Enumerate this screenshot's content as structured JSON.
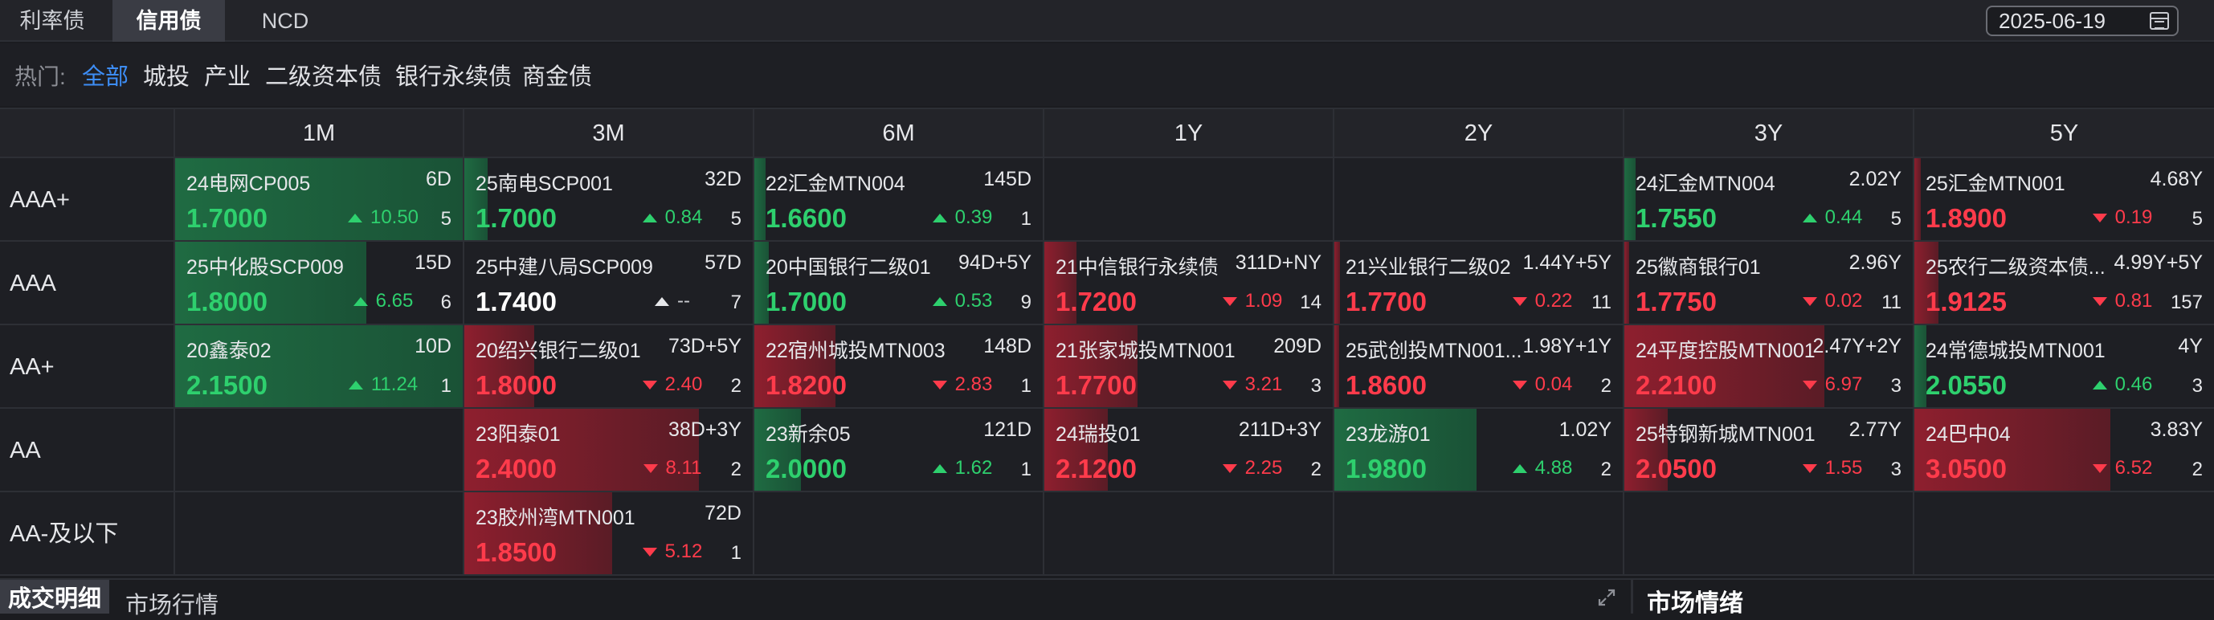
{
  "tabs": [
    "利率债",
    "信用债",
    "NCD"
  ],
  "active_tab": "信用债",
  "date": "2025-06-19",
  "hot": {
    "label": "热门:",
    "items": [
      "全部",
      "城投",
      "产业",
      "二级资本债",
      "银行永续债",
      "商金债"
    ],
    "active": "全部"
  },
  "columns": [
    "1M",
    "3M",
    "6M",
    "1Y",
    "2Y",
    "3Y",
    "5Y"
  ],
  "rows": [
    {
      "rating": "AAA+",
      "cells": [
        {
          "name": "24电网CP005",
          "term": "6D",
          "yield": "1.7000",
          "dir": "up",
          "change": "10.50",
          "count": "5",
          "level": 1.0
        },
        {
          "name": "25南电SCP001",
          "term": "32D",
          "yield": "1.7000",
          "dir": "up",
          "change": "0.84",
          "count": "5",
          "level": 0.08
        },
        {
          "name": "22汇金MTN004",
          "term": "145D",
          "yield": "1.6600",
          "dir": "up",
          "change": "0.39",
          "count": "1",
          "level": 0.04
        },
        null,
        null,
        {
          "name": "24汇金MTN004",
          "term": "2.02Y",
          "yield": "1.7550",
          "dir": "up",
          "change": "0.44",
          "count": "5",
          "level": 0.04
        },
        {
          "name": "25汇金MTN001",
          "term": "4.68Y",
          "yield": "1.8900",
          "dir": "down",
          "change": "0.19",
          "count": "5",
          "level": 0.02
        }
      ]
    },
    {
      "rating": "AAA",
      "cells": [
        {
          "name": "25中化股SCP009",
          "term": "15D",
          "yield": "1.8000",
          "dir": "up",
          "change": "6.65",
          "count": "6",
          "level": 0.66
        },
        {
          "name": "25中建八局SCP009",
          "term": "57D",
          "yield": "1.7400",
          "dir": "flat",
          "change": "--",
          "count": "7",
          "level": 0
        },
        {
          "name": "20中国银行二级01",
          "term": "94D+5Y",
          "yield": "1.7000",
          "dir": "up",
          "change": "0.53",
          "count": "9",
          "level": 0.05
        },
        {
          "name": "21中信银行永续债",
          "term": "311D+NY",
          "yield": "1.7200",
          "dir": "down",
          "change": "1.09",
          "count": "14",
          "level": 0.11
        },
        {
          "name": "21兴业银行二级02",
          "term": "1.44Y+5Y",
          "yield": "1.7700",
          "dir": "down",
          "change": "0.22",
          "count": "11",
          "level": 0.02
        },
        {
          "name": "25徽商银行01",
          "term": "2.96Y",
          "yield": "1.7750",
          "dir": "down",
          "change": "0.02",
          "count": "11",
          "level": 0.0
        },
        {
          "name": "25农行二级资本债...",
          "term": "4.99Y+5Y",
          "yield": "1.9125",
          "dir": "down",
          "change": "0.81",
          "count": "157",
          "level": 0.08
        }
      ]
    },
    {
      "rating": "AA+",
      "cells": [
        {
          "name": "20鑫泰02",
          "term": "10D",
          "yield": "2.1500",
          "dir": "up",
          "change": "11.24",
          "count": "1",
          "level": 1.0
        },
        {
          "name": "20绍兴银行二级01",
          "term": "73D+5Y",
          "yield": "1.8000",
          "dir": "down",
          "change": "2.40",
          "count": "2",
          "level": 0.24
        },
        {
          "name": "22宿州城投MTN003",
          "term": "148D",
          "yield": "1.8200",
          "dir": "down",
          "change": "2.83",
          "count": "1",
          "level": 0.28
        },
        {
          "name": "21张家城投MTN001",
          "term": "209D",
          "yield": "1.7700",
          "dir": "down",
          "change": "3.21",
          "count": "3",
          "level": 0.32
        },
        {
          "name": "25武创投MTN001...",
          "term": "1.98Y+1Y",
          "yield": "1.8600",
          "dir": "down",
          "change": "0.04",
          "count": "2",
          "level": 0.0
        },
        {
          "name": "24平度控股MTN001",
          "term": "2.47Y+2Y",
          "yield": "2.2100",
          "dir": "down",
          "change": "6.97",
          "count": "3",
          "level": 0.69
        },
        {
          "name": "24常德城投MTN001",
          "term": "4Y",
          "yield": "2.0550",
          "dir": "up",
          "change": "0.46",
          "count": "3",
          "level": 0.04
        }
      ]
    },
    {
      "rating": "AA",
      "cells": [
        null,
        {
          "name": "23阳泰01",
          "term": "38D+3Y",
          "yield": "2.4000",
          "dir": "down",
          "change": "8.11",
          "count": "2",
          "level": 0.81
        },
        {
          "name": "23新余05",
          "term": "121D",
          "yield": "2.0000",
          "dir": "up",
          "change": "1.62",
          "count": "1",
          "level": 0.16
        },
        {
          "name": "24瑞投01",
          "term": "211D+3Y",
          "yield": "2.1200",
          "dir": "down",
          "change": "2.25",
          "count": "2",
          "level": 0.22
        },
        {
          "name": "23龙游01",
          "term": "1.02Y",
          "yield": "1.9800",
          "dir": "up",
          "change": "4.88",
          "count": "2",
          "level": 0.49
        },
        {
          "name": "25特钢新城MTN001",
          "term": "2.77Y",
          "yield": "2.0500",
          "dir": "down",
          "change": "1.55",
          "count": "3",
          "level": 0.15
        },
        {
          "name": "24巴中04",
          "term": "3.83Y",
          "yield": "3.0500",
          "dir": "down",
          "change": "6.52",
          "count": "2",
          "level": 0.65
        }
      ]
    },
    {
      "rating": "AA-及以下",
      "cells": [
        null,
        {
          "name": "23胶州湾MTN001",
          "term": "72D",
          "yield": "1.8500",
          "dir": "down",
          "change": "5.12",
          "count": "1",
          "level": 0.51
        },
        null,
        null,
        null,
        null,
        null
      ]
    }
  ],
  "bottom": {
    "tabs": [
      "成交明细",
      "市场行情"
    ],
    "active": "成交明细",
    "sentiment_title": "市场情绪"
  },
  "colors": {
    "up": "#2ed06e",
    "down": "#ff3b4b",
    "accent": "#3d8df5",
    "background": "#1b1c20"
  }
}
